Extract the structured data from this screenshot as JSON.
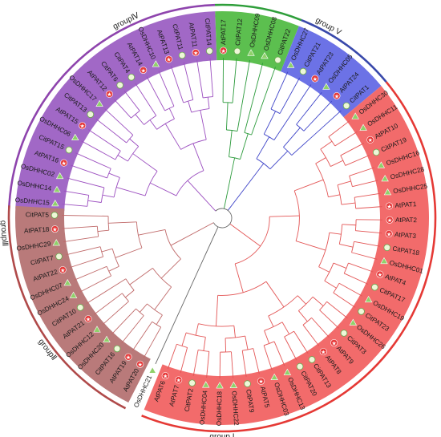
{
  "colors": {
    "group_I": "#e53935",
    "group_II": "#3949ab",
    "group_III": "#2e9e3a",
    "group_IV": "#8e44ad",
    "group_V": "#b04a4a",
    "sector_I": "#f26b6b",
    "sector_II": "#6c72e6",
    "sector_III": "#5cbf4f",
    "sector_IV": "#a168c6",
    "sector_V": "#b97a7a",
    "branch_I": "#e35555",
    "branch_II": "#3e44c8",
    "branch_III": "#2b9a3b",
    "branch_IV": "#9c4fc0",
    "branch_V": "#c06a6a",
    "outgroup": "#666666"
  },
  "legend_markers": {
    "At": "red-star",
    "Os": "green-triangle",
    "Cit": "green-circle"
  },
  "groups": [
    {
      "id": "I",
      "label": "group I"
    },
    {
      "id": "II",
      "label": "groupⅡ"
    },
    {
      "id": "III",
      "label": "groupⅢ"
    },
    {
      "id": "IV",
      "label": "groupⅣ"
    },
    {
      "id": "V",
      "label": "group V"
    }
  ],
  "leaves": [
    {
      "name": "OsDHHC15",
      "group": "IV"
    },
    {
      "name": "OsDHHC14",
      "group": "IV"
    },
    {
      "name": "OsDHHC02",
      "group": "IV"
    },
    {
      "name": "AtPAT16",
      "group": "IV"
    },
    {
      "name": "CitPAT15",
      "group": "IV"
    },
    {
      "name": "OsDHHC06",
      "group": "IV"
    },
    {
      "name": "AtPAT15",
      "group": "IV"
    },
    {
      "name": "CitPAT13",
      "group": "IV"
    },
    {
      "name": "OsDHHC17",
      "group": "IV"
    },
    {
      "name": "AtPAT12",
      "group": "IV"
    },
    {
      "name": "CitPAT6",
      "group": "IV"
    },
    {
      "name": "CitPAT4",
      "group": "IV"
    },
    {
      "name": "AtPAT14",
      "group": "IV"
    },
    {
      "name": "OsDHHC10",
      "group": "IV"
    },
    {
      "name": "AtPAT13",
      "group": "IV"
    },
    {
      "name": "CitPAT11",
      "group": "IV"
    },
    {
      "name": "AtPAT11",
      "group": "IV"
    },
    {
      "name": "CitPAT14",
      "group": "IV"
    },
    {
      "name": "AtPAT17",
      "group": "III"
    },
    {
      "name": "CitPAT12",
      "group": "III"
    },
    {
      "name": "OsDHHC09",
      "group": "III"
    },
    {
      "name": "OsDHHC08",
      "group": "III"
    },
    {
      "name": "CitPAT22",
      "group": "III"
    },
    {
      "name": "OsDHHC27",
      "group": "II"
    },
    {
      "name": "CitPAT21",
      "group": "II"
    },
    {
      "name": "AtPAT23",
      "group": "II"
    },
    {
      "name": "OsDHHC05",
      "group": "II"
    },
    {
      "name": "AtPAT24",
      "group": "II"
    },
    {
      "name": "CitPAT1",
      "group": "II"
    },
    {
      "name": "OsDHHC30",
      "group": "I"
    },
    {
      "name": "OsDHHC11",
      "group": "I"
    },
    {
      "name": "AtPAT10",
      "group": "I"
    },
    {
      "name": "CitPAT19",
      "group": "I"
    },
    {
      "name": "OsDHHC16",
      "group": "I"
    },
    {
      "name": "OsDHHC28",
      "group": "I"
    },
    {
      "name": "OsDHHC25",
      "group": "I"
    },
    {
      "name": "AtPAT1",
      "group": "I"
    },
    {
      "name": "AtPAT2",
      "group": "I"
    },
    {
      "name": "AtPAT3",
      "group": "I"
    },
    {
      "name": "CitPAT18",
      "group": "I"
    },
    {
      "name": "OsDHHC01",
      "group": "I"
    },
    {
      "name": "AtPAT4",
      "group": "I"
    },
    {
      "name": "CitPAT17",
      "group": "I"
    },
    {
      "name": "OsDHHC19",
      "group": "I"
    },
    {
      "name": "CitPAT23",
      "group": "I"
    },
    {
      "name": "OsDHHC26",
      "group": "I"
    },
    {
      "name": "CitPAT3",
      "group": "I"
    },
    {
      "name": "AtPAT9",
      "group": "I"
    },
    {
      "name": "AtPAT8",
      "group": "I"
    },
    {
      "name": "CitPAT13",
      "group": "I"
    },
    {
      "name": "CitPAT20",
      "group": "I"
    },
    {
      "name": "OsDHHC13",
      "group": "I"
    },
    {
      "name": "OsDHHC03",
      "group": "I"
    },
    {
      "name": "AtPAT5",
      "group": "I"
    },
    {
      "name": "CitPAT9",
      "group": "I"
    },
    {
      "name": "OsDHHC22",
      "group": "I"
    },
    {
      "name": "OsDHHC18",
      "group": "I"
    },
    {
      "name": "OsDHHC04",
      "group": "I"
    },
    {
      "name": "CitPAT2",
      "group": "I"
    },
    {
      "name": "AtPAT7",
      "group": "I"
    },
    {
      "name": "AtPAT6",
      "group": "I"
    },
    {
      "name": "OsDHHC21",
      "group": "outgroup"
    },
    {
      "name": "AtPAT20",
      "group": "V"
    },
    {
      "name": "AtPAT19",
      "group": "V"
    },
    {
      "name": "CitPAT16",
      "group": "V"
    },
    {
      "name": "OsDHHC20",
      "group": "V"
    },
    {
      "name": "OsDHHC12",
      "group": "V"
    },
    {
      "name": "AtPAT21",
      "group": "V"
    },
    {
      "name": "CitPAT10",
      "group": "V"
    },
    {
      "name": "OsDHHC24",
      "group": "V"
    },
    {
      "name": "OsDHHC07",
      "group": "V"
    },
    {
      "name": "AtPAT22",
      "group": "V"
    },
    {
      "name": "CitPAT7",
      "group": "V"
    },
    {
      "name": "OsDHHC29",
      "group": "V"
    },
    {
      "name": "AtPAT18",
      "group": "V"
    },
    {
      "name": "CitPAT5",
      "group": "V"
    }
  ]
}
